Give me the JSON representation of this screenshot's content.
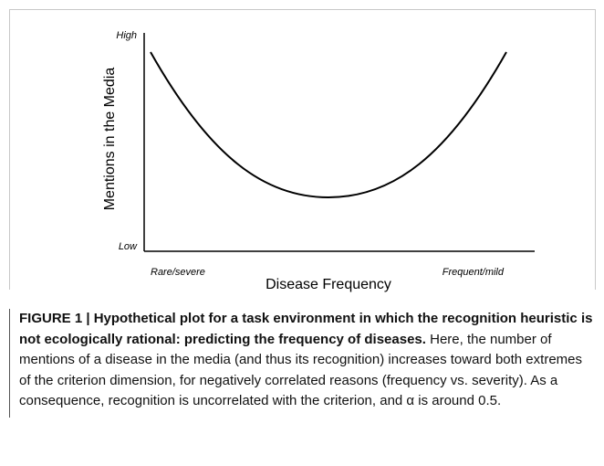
{
  "figure": {
    "y_axis": {
      "label": "Mentions in the Media",
      "high": "High",
      "low": "Low"
    },
    "x_axis": {
      "label": "Disease Frequency",
      "left": "Rare/severe",
      "right": "Frequent/mild"
    }
  },
  "caption": {
    "label": "FIGURE 1 | Hypothetical plot for a task environment in which the recognition heuristic is not ecologically rational: predicting the frequency of diseases.",
    "text": "Here, the number of mentions of a disease in the media (and thus its recognition) increases toward both extremes of the criterion dimension, for negatively correlated reasons (frequency vs. severity). As a consequence, recognition is uncorrelated with the criterion, and α is around 0.5."
  }
}
